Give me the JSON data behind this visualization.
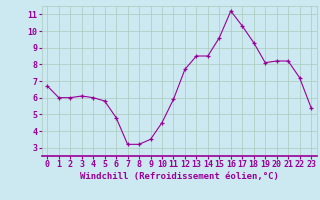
{
  "x": [
    0,
    1,
    2,
    3,
    4,
    5,
    6,
    7,
    8,
    9,
    10,
    11,
    12,
    13,
    14,
    15,
    16,
    17,
    18,
    19,
    20,
    21,
    22,
    23
  ],
  "y": [
    6.7,
    6.0,
    6.0,
    6.1,
    6.0,
    5.8,
    4.8,
    3.2,
    3.2,
    3.5,
    4.5,
    5.9,
    7.7,
    8.5,
    8.5,
    9.6,
    11.2,
    10.3,
    9.3,
    8.1,
    8.2,
    8.2,
    7.2,
    5.4
  ],
  "xlim": [
    -0.5,
    23.5
  ],
  "ylim": [
    2.5,
    11.5
  ],
  "yticks": [
    3,
    4,
    5,
    6,
    7,
    8,
    9,
    10,
    11
  ],
  "xtick_labels": [
    "0",
    "1",
    "2",
    "3",
    "4",
    "5",
    "6",
    "7",
    "8",
    "9",
    "10",
    "11",
    "12",
    "13",
    "14",
    "15",
    "16",
    "17",
    "18",
    "19",
    "20",
    "21",
    "22",
    "23"
  ],
  "xlabel": "Windchill (Refroidissement éolien,°C)",
  "line_color": "#990099",
  "bg_color": "#cce8f0",
  "grid_color": "#aaccbb",
  "tick_color": "#990099",
  "label_color": "#990099",
  "font_size_xlabel": 6.5,
  "font_size_ticks": 6.0
}
